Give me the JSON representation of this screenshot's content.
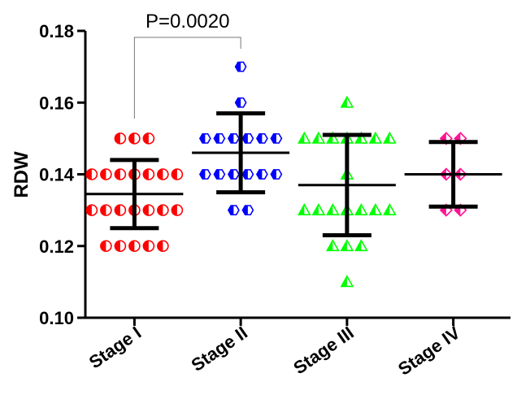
{
  "chart_data": {
    "type": "scatter",
    "title": "",
    "xlabel": "",
    "ylabel": "RDW",
    "ylim": [
      0.1,
      0.18
    ],
    "yticks": [
      "0.10",
      "0.12",
      "0.14",
      "0.16",
      "0.18"
    ],
    "grid": false,
    "categories": [
      "Stage I",
      "Stage II",
      "Stage III",
      "Stage IV"
    ],
    "annotation": {
      "text": "P=0.0020",
      "from": "Stage I",
      "to": "Stage II"
    },
    "series": [
      {
        "category": "Stage I",
        "color": "#ff0000",
        "marker": "half-circle",
        "mean": 0.1345,
        "sd_low": 0.125,
        "sd_high": 0.144,
        "points": [
          {
            "y": 0.15,
            "n": 3
          },
          {
            "y": 0.14,
            "n": 7
          },
          {
            "y": 0.13,
            "n": 7
          },
          {
            "y": 0.12,
            "n": 5
          }
        ]
      },
      {
        "category": "Stage II",
        "color": "#0000ff",
        "marker": "half-hexagon",
        "mean": 0.146,
        "sd_low": 0.135,
        "sd_high": 0.157,
        "points": [
          {
            "y": 0.17,
            "n": 1
          },
          {
            "y": 0.16,
            "n": 1
          },
          {
            "y": 0.15,
            "n": 6
          },
          {
            "y": 0.14,
            "n": 6
          },
          {
            "y": 0.13,
            "n": 2
          }
        ]
      },
      {
        "category": "Stage III",
        "color": "#00ff00",
        "marker": "half-triangle",
        "mean": 0.137,
        "sd_low": 0.123,
        "sd_high": 0.151,
        "points": [
          {
            "y": 0.16,
            "n": 1
          },
          {
            "y": 0.15,
            "n": 7
          },
          {
            "y": 0.14,
            "n": 1
          },
          {
            "y": 0.13,
            "n": 7
          },
          {
            "y": 0.12,
            "n": 3
          },
          {
            "y": 0.11,
            "n": 1
          }
        ]
      },
      {
        "category": "Stage IV",
        "color": "#ff1493",
        "marker": "half-diamond",
        "mean": 0.14,
        "sd_low": 0.131,
        "sd_high": 0.149,
        "points": [
          {
            "y": 0.15,
            "n": 2
          },
          {
            "y": 0.14,
            "n": 2
          },
          {
            "y": 0.13,
            "n": 2
          }
        ]
      }
    ]
  }
}
